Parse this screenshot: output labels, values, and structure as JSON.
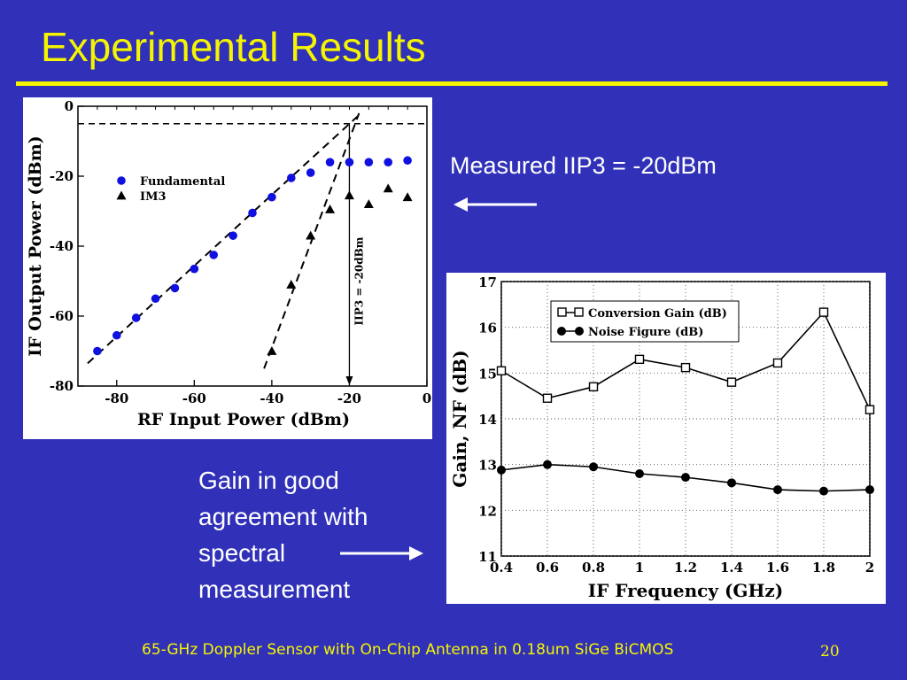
{
  "slide": {
    "title": "Experimental Results",
    "iip3_note": "Measured IIP3 = -20dBm",
    "gain_note": "Gain in good agreement with spectral measurement",
    "footer": "65-GHz Doppler Sensor with On-Chip Antenna in 0.18um SiGe BiCMOS",
    "page_number": "20"
  },
  "colors": {
    "background": "#3030b8",
    "title": "#f5f500",
    "fundamental": "#1010e0"
  },
  "chart_data": [
    {
      "type": "scatter",
      "xlabel": "RF Input Power (dBm)",
      "ylabel": "IF Output Power (dBm)",
      "xlim": [
        -90,
        0
      ],
      "ylim": [
        -80,
        0
      ],
      "xticks": [
        -80,
        -60,
        -40,
        -20,
        0
      ],
      "yticks": [
        0,
        -20,
        -40,
        -60,
        -80
      ],
      "legend_position": "upper-left",
      "series": [
        {
          "name": "Fundamental",
          "marker": "circle",
          "x": [
            -85,
            -80,
            -75,
            -70,
            -65,
            -60,
            -55,
            -50,
            -45,
            -40,
            -35,
            -30,
            -25,
            -20,
            -15,
            -10,
            -5
          ],
          "y": [
            -70,
            -65.5,
            -60.5,
            -55,
            -52,
            -46.5,
            -42.5,
            -37,
            -30.5,
            -26,
            -20.5,
            -19,
            -16,
            -16,
            -16,
            -16,
            -15.5
          ]
        },
        {
          "name": "IM3",
          "marker": "triangle",
          "x": [
            -40,
            -35,
            -30,
            -25,
            -20,
            -15,
            -10,
            -5
          ],
          "y": [
            -70,
            -51,
            -37,
            -29.5,
            -25.5,
            -28,
            -23.5,
            -26
          ]
        }
      ],
      "annotation": "IIP3 = -20dBm",
      "extrapolated_iip3": {
        "x": -20,
        "y": -5
      }
    },
    {
      "type": "line",
      "xlabel": "IF Frequency (GHz)",
      "ylabel": "Gain, NF (dB)",
      "xlim": [
        0.4,
        2
      ],
      "ylim": [
        11,
        17
      ],
      "xticks": [
        "0.4",
        "0.6",
        "0.8",
        "1",
        "1.2",
        "1.4",
        "1.6",
        "1.8",
        "2"
      ],
      "yticks": [
        "11",
        "12",
        "13",
        "14",
        "15",
        "16",
        "17"
      ],
      "legend_position": "top-right",
      "x": [
        0.4,
        0.6,
        0.8,
        1.0,
        1.2,
        1.4,
        1.6,
        1.8,
        2.0
      ],
      "series": [
        {
          "name": "Conversion Gain (dB)",
          "marker": "open-square",
          "values": [
            15.05,
            14.45,
            14.7,
            15.3,
            15.12,
            14.8,
            15.22,
            16.33,
            14.2
          ]
        },
        {
          "name": "Noise Figure (dB)",
          "marker": "filled-circle",
          "values": [
            12.88,
            13.0,
            12.95,
            12.8,
            12.72,
            12.6,
            12.45,
            12.42,
            12.45
          ]
        }
      ]
    }
  ]
}
